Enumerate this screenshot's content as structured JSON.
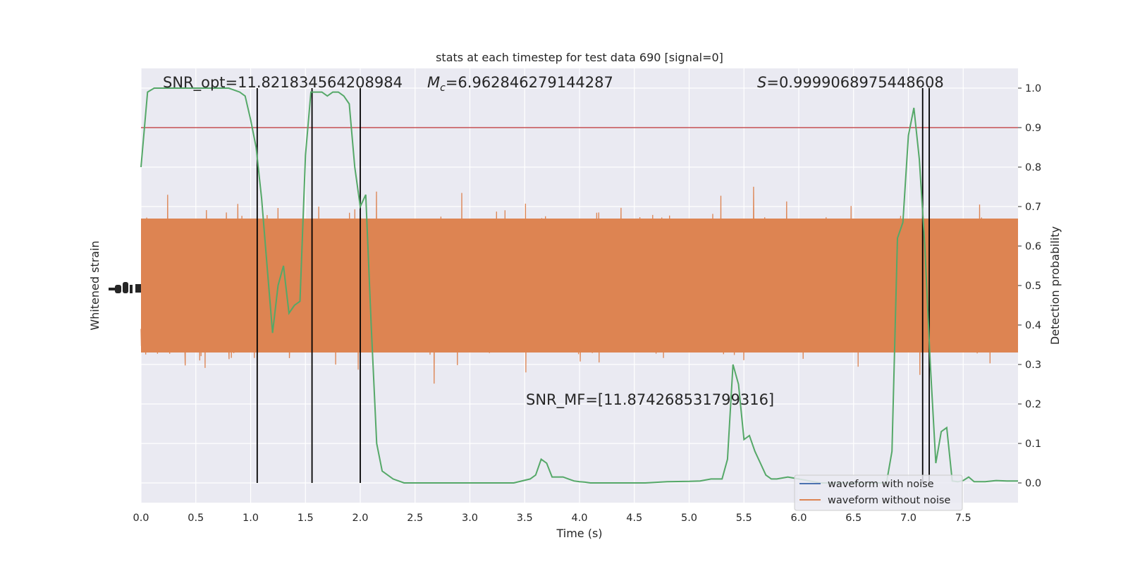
{
  "chart_data": {
    "type": "line",
    "title": "stats at each timestep for test data 690 [signal=0]",
    "xlabel": "Time (s)",
    "ylabel_left": "Whitened strain",
    "ylabel_right": "Detection probability",
    "xlim": [
      0.0,
      8.0
    ],
    "ylim_right": [
      -0.05,
      1.05
    ],
    "x_ticks": [
      "0.0",
      "0.5",
      "1.0",
      "1.5",
      "2.0",
      "2.5",
      "3.0",
      "3.5",
      "4.0",
      "4.5",
      "5.0",
      "5.5",
      "6.0",
      "6.5",
      "7.0",
      "7.5"
    ],
    "y_ticks_right": [
      "0.0",
      "0.1",
      "0.2",
      "0.3",
      "0.4",
      "0.5",
      "0.6",
      "0.7",
      "0.8",
      "0.9",
      "1.0"
    ],
    "grid": true,
    "annotations": {
      "snr_opt": "SNR_opt=11.821834564208984",
      "mc_symbol": "M",
      "mc_sub": "c",
      "mc_value": "=6.962846279144287",
      "s_symbol": "S",
      "s_value": "=0.9999068975448608",
      "snr_mf": "SNR_MF=[11.874268531799316]"
    },
    "threshold": 0.9,
    "vertical_lines": [
      1.06,
      1.56,
      2.0,
      7.13,
      7.19
    ],
    "series": [
      {
        "name": "waveform with noise",
        "color": "#4c72b0"
      },
      {
        "name": "waveform without noise",
        "color": "#dd8452"
      }
    ],
    "detection_probability": {
      "color": "#55a868",
      "x": [
        0.0,
        0.06,
        0.12,
        0.2,
        0.3,
        0.4,
        0.5,
        0.6,
        0.7,
        0.8,
        0.9,
        0.95,
        1.0,
        1.05,
        1.1,
        1.15,
        1.2,
        1.25,
        1.3,
        1.35,
        1.4,
        1.45,
        1.5,
        1.55,
        1.6,
        1.65,
        1.7,
        1.75,
        1.8,
        1.85,
        1.9,
        1.95,
        2.0,
        2.05,
        2.1,
        2.15,
        2.2,
        2.25,
        2.3,
        2.35,
        2.4,
        2.45,
        2.5,
        2.6,
        2.7,
        2.8,
        3.0,
        3.2,
        3.4,
        3.55,
        3.6,
        3.65,
        3.7,
        3.75,
        3.8,
        3.85,
        3.9,
        3.95,
        4.0,
        4.05,
        4.1,
        4.2,
        4.4,
        4.6,
        4.8,
        5.0,
        5.1,
        5.2,
        5.3,
        5.35,
        5.4,
        5.45,
        5.5,
        5.55,
        5.6,
        5.65,
        5.7,
        5.75,
        5.8,
        5.9,
        6.0,
        6.1,
        6.2,
        6.3,
        6.4,
        6.5,
        6.6,
        6.7,
        6.8,
        6.85,
        6.9,
        6.95,
        7.0,
        7.05,
        7.1,
        7.15,
        7.2,
        7.25,
        7.3,
        7.35,
        7.4,
        7.45,
        7.5,
        7.55,
        7.6,
        7.7,
        7.8,
        7.9,
        8.0
      ],
      "y": [
        0.8,
        0.99,
        1.0,
        1.0,
        1.0,
        1.0,
        1.0,
        1.0,
        1.0,
        1.0,
        0.99,
        0.98,
        0.92,
        0.85,
        0.72,
        0.55,
        0.38,
        0.5,
        0.55,
        0.43,
        0.45,
        0.46,
        0.83,
        0.99,
        0.99,
        0.99,
        0.98,
        0.99,
        0.99,
        0.98,
        0.96,
        0.8,
        0.7,
        0.73,
        0.4,
        0.1,
        0.03,
        0.02,
        0.01,
        0.005,
        0.0,
        0.0,
        0.0,
        0.0,
        0.0,
        0.0,
        0.0,
        0.0,
        0.0,
        0.01,
        0.02,
        0.06,
        0.05,
        0.015,
        0.015,
        0.015,
        0.01,
        0.005,
        0.003,
        0.002,
        0.0,
        0.0,
        0.0,
        0.0,
        0.003,
        0.004,
        0.005,
        0.01,
        0.01,
        0.06,
        0.3,
        0.25,
        0.11,
        0.12,
        0.08,
        0.05,
        0.02,
        0.01,
        0.01,
        0.015,
        0.01,
        0.005,
        0.0,
        0.0,
        0.0,
        0.0,
        0.0,
        0.0,
        0.0,
        0.08,
        0.62,
        0.66,
        0.88,
        0.95,
        0.82,
        0.6,
        0.3,
        0.05,
        0.13,
        0.14,
        0.005,
        0.003,
        0.006,
        0.015,
        0.003,
        0.003,
        0.006,
        0.005,
        0.005
      ]
    }
  }
}
